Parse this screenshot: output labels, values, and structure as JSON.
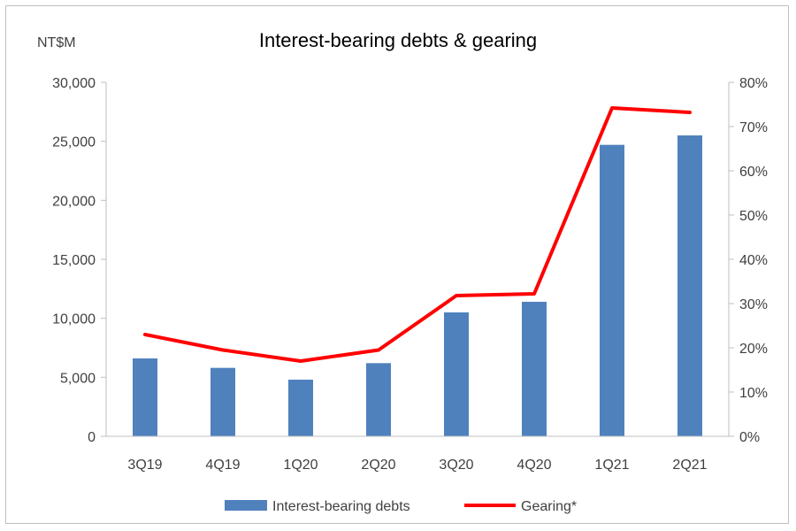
{
  "chart_data": {
    "type": "bar",
    "title": "Interest-bearing debts & gearing",
    "y_unit_label": "NT$M",
    "categories": [
      "3Q19",
      "4Q19",
      "1Q20",
      "2Q20",
      "3Q20",
      "4Q20",
      "1Q21",
      "2Q21"
    ],
    "series": [
      {
        "name": "Interest-bearing debts",
        "type": "bar",
        "axis": "left",
        "values": [
          6600,
          5800,
          4800,
          6200,
          10500,
          11400,
          24700,
          25500
        ]
      },
      {
        "name": "Gearing*",
        "type": "line",
        "axis": "right",
        "values": [
          23,
          19.5,
          17,
          19.5,
          31.8,
          32.2,
          74.2,
          73.2
        ]
      }
    ],
    "y_left": {
      "min": 0,
      "max": 30000,
      "ticks": [
        "0",
        "5,000",
        "10,000",
        "15,000",
        "20,000",
        "25,000",
        "30,000"
      ]
    },
    "y_right": {
      "min": 0,
      "max": 80,
      "ticks": [
        "0%",
        "10%",
        "20%",
        "30%",
        "40%",
        "50%",
        "60%",
        "70%",
        "80%"
      ]
    },
    "grid": false,
    "legend_position": "bottom",
    "colors": {
      "bar": "#4f81bd",
      "line": "#ff0000",
      "axis": "#bfbfbf",
      "text": "#404040"
    }
  }
}
